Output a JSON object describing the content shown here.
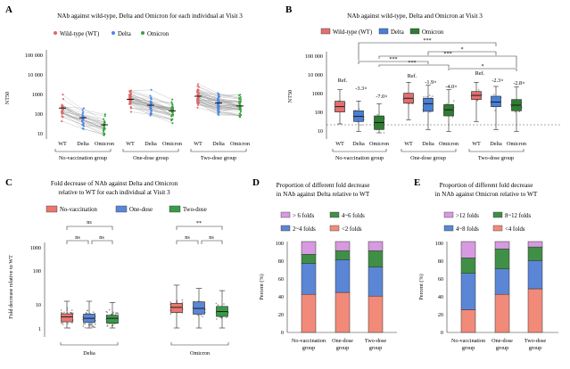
{
  "panelA": {
    "label": "A",
    "title": "NAb against wild-type, Delta and Omicron for each individual at Visit 3",
    "legend": [
      {
        "name": "Wild-type (WT)",
        "color": "#e06666"
      },
      {
        "name": "Delta",
        "color": "#4a86e8"
      },
      {
        "name": "Omicron",
        "color": "#38a33a"
      }
    ],
    "ylabel": "NT50",
    "yticks": [
      "100 000",
      "10 000",
      "1000",
      "100",
      "10"
    ],
    "variant_ticks": [
      "WT",
      "Delta",
      "Omicron"
    ],
    "groups": [
      "No-vaccination group",
      "One-dose group",
      "Two-dose group"
    ]
  },
  "panelB": {
    "label": "B",
    "title": "NAb against wild-type, Delta and Omicron at Visit 3",
    "legend": [
      {
        "name": "Wild-type (WT)",
        "color": "#e26f6f"
      },
      {
        "name": "Delta",
        "color": "#4a7fd6"
      },
      {
        "name": "Omicron",
        "color": "#2f7d32"
      }
    ],
    "ylabel": "NT50",
    "yticks": [
      "100 000",
      "10 000",
      "1000",
      "100",
      "10"
    ],
    "variant_ticks": [
      "WT",
      "Delta",
      "Omicron"
    ],
    "groups": [
      "No-vaccination group",
      "One-dose group",
      "Two-dose group"
    ],
    "ref_label": "Ref.",
    "fold_labels": [
      "-3.3×",
      "-7.0×",
      "-1.9×",
      "-4.0×",
      "-2.3×",
      "-2.8×"
    ],
    "sig_marks": [
      "***",
      "***",
      "*",
      "***",
      "***",
      "*"
    ]
  },
  "panelC": {
    "label": "C",
    "title_line1": "Fold decrease of NAb against Delta and Omicron",
    "title_line2": "relative to WT for each individual at Visit 3",
    "legend": [
      {
        "name": "No-vaccination",
        "color": "#e8776f"
      },
      {
        "name": "One-dose",
        "color": "#5b86d6"
      },
      {
        "name": "Two-dose",
        "color": "#3a9a48"
      }
    ],
    "ylabel": "Fold decrease relative to WT",
    "yticks": [
      "1000",
      "100",
      "10",
      "1"
    ],
    "groups": [
      "Delta",
      "Omicron"
    ],
    "sig_marks": [
      "ns",
      "ns",
      "ns",
      "**",
      "ns",
      "ns"
    ]
  },
  "panelD": {
    "label": "D",
    "title_line1": "Proportion of different fold decrease",
    "title_line2": "in NAb against Delta relative to WT",
    "legend": [
      "> 6 folds",
      "4~6 folds",
      "2~4 folds",
      "<2 folds"
    ],
    "ylabel": "Percent (%)",
    "yticks": [
      "100",
      "80",
      "60",
      "40",
      "20",
      "0"
    ],
    "categories_line1": [
      "No-vaccination",
      "One-dose",
      "Two-dose"
    ],
    "categories_line2": [
      "group",
      "group",
      "group"
    ]
  },
  "panelE": {
    "label": "E",
    "title_line1": "Proportion of different fold decrease",
    "title_line2": "in NAb against Omicron relative to WT",
    "legend": [
      ">12 folds",
      "8~12 folds",
      "4~8 folds",
      "<4 folds"
    ],
    "ylabel": "Percent (%)",
    "yticks": [
      "100",
      "80",
      "60",
      "40",
      "20",
      "0"
    ],
    "categories_line1": [
      "No-vaccination",
      "One-dose",
      "Two-dose"
    ],
    "categories_line2": [
      "group",
      "group",
      "group"
    ]
  },
  "colors": {
    "seg_red": "#f28a7a",
    "seg_blue": "#5b86d6",
    "seg_green": "#3f8f46",
    "seg_purple": "#d79ae0"
  },
  "chart_data": [
    {
      "panel": "A",
      "type": "scatter",
      "title": "NAb against wild-type, Delta and Omicron for each individual at Visit 3",
      "ylabel": "NT50",
      "yscale": "log",
      "ylim": [
        10,
        100000
      ],
      "groups": [
        "No-vaccination group",
        "One-dose group",
        "Two-dose group"
      ],
      "x": [
        "WT",
        "Delta",
        "Omicron"
      ],
      "series": [
        {
          "group": "No-vaccination group",
          "median": [
            250,
            80,
            35
          ]
        },
        {
          "group": "One-dose group",
          "median": [
            700,
            350,
            180
          ]
        },
        {
          "group": "Two-dose group",
          "median": [
            1000,
            450,
            320
          ]
        }
      ]
    },
    {
      "panel": "B",
      "type": "box",
      "title": "NAb against wild-type, Delta and Omicron at Visit 3",
      "ylabel": "NT50",
      "yscale": "log",
      "ylim": [
        10,
        100000
      ],
      "groups": [
        "No-vaccination group",
        "One-dose group",
        "Two-dose group"
      ],
      "series": [
        {
          "group": "No-vaccination group",
          "WT": [
            30,
            130,
            250,
            480,
            2000
          ],
          "Delta": [
            12,
            40,
            75,
            150,
            500
          ],
          "Omicron": [
            10,
            15,
            35,
            80,
            350
          ]
        },
        {
          "group": "One-dose group",
          "WT": [
            50,
            380,
            700,
            1300,
            5000
          ],
          "Delta": [
            15,
            140,
            360,
            700,
            3500
          ],
          "Omicron": [
            12,
            80,
            170,
            320,
            2000
          ]
        },
        {
          "group": "Two-dose group",
          "WT": [
            40,
            600,
            1000,
            1600,
            5000
          ],
          "Delta": [
            15,
            250,
            440,
            900,
            3000
          ],
          "Omicron": [
            12,
            150,
            300,
            600,
            2800
          ]
        }
      ],
      "fold_labels": [
        "-3.3×",
        "-7.0×",
        "-1.9×",
        "-4.0×",
        "-2.3×",
        "-2.8×"
      ]
    },
    {
      "panel": "C",
      "type": "box",
      "title": "Fold decrease of NAb against Delta and Omicron relative to WT for each individual at Visit 3",
      "ylabel": "Fold decrease relative to WT",
      "yscale": "log",
      "ylim": [
        0.5,
        1000
      ],
      "categories": [
        "Delta",
        "Omicron"
      ],
      "series": [
        {
          "name": "No-vaccination",
          "Delta": [
            1,
            1.7,
            2.6,
            3.4,
            10
          ],
          "Omicron": [
            1,
            3.8,
            5.9,
            8.4,
            40
          ]
        },
        {
          "name": "One-dose",
          "Delta": [
            1,
            1.6,
            2.3,
            3.3,
            10
          ],
          "Omicron": [
            1,
            3.3,
            5.4,
            9.5,
            30
          ]
        },
        {
          "name": "Two-dose",
          "Delta": [
            1,
            1.5,
            2.3,
            3.0,
            9
          ],
          "Omicron": [
            1,
            2.7,
            4.1,
            6.4,
            25
          ]
        }
      ]
    },
    {
      "panel": "D",
      "type": "stacked_bar",
      "title": "Proportion of different fold decrease in NAb against Delta relative to WT",
      "ylabel": "Percent (%)",
      "ylim": [
        0,
        100
      ],
      "categories": [
        "No-vaccination group",
        "One-dose group",
        "Two-dose group"
      ],
      "series": [
        {
          "name": "<2 folds",
          "values": [
            42,
            44,
            40
          ]
        },
        {
          "name": "2~4 folds",
          "values": [
            34,
            36,
            32
          ]
        },
        {
          "name": "4~6 folds",
          "values": [
            10,
            10,
            18
          ]
        },
        {
          "name": "> 6 folds",
          "values": [
            14,
            10,
            10
          ]
        }
      ]
    },
    {
      "panel": "E",
      "type": "stacked_bar",
      "title": "Proportion of different fold decrease in NAb against Omicron relative to WT",
      "ylabel": "Percent (%)",
      "ylim": [
        0,
        100
      ],
      "categories": [
        "No-vaccination group",
        "One-dose group",
        "Two-dose group"
      ],
      "series": [
        {
          "name": "<4 folds",
          "values": [
            25,
            42,
            48
          ]
        },
        {
          "name": "4~8 folds",
          "values": [
            40,
            28,
            31
          ]
        },
        {
          "name": "8~12 folds",
          "values": [
            17,
            22,
            15
          ]
        },
        {
          "name": ">12 folds",
          "values": [
            18,
            8,
            6
          ]
        }
      ]
    }
  ]
}
